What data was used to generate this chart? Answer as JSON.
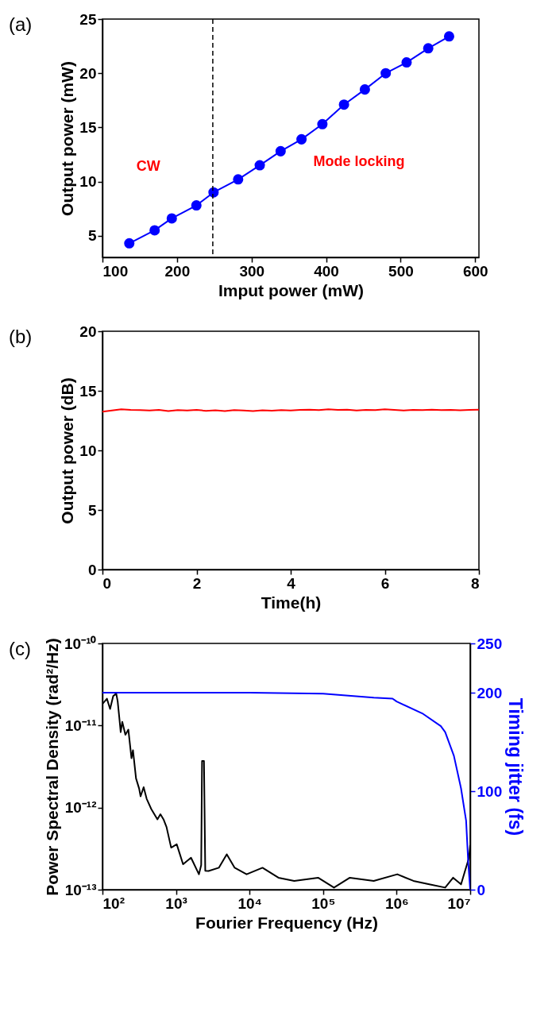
{
  "chart_data": [
    {
      "type": "line",
      "xlabel": "Imput power (mW)",
      "ylabel": "Output power (mW)",
      "annotations": [
        "(a)",
        "CW",
        "Mode locking"
      ],
      "x": [
        136,
        170,
        193,
        226,
        249,
        282,
        311,
        339,
        367,
        395,
        424,
        452,
        480,
        508,
        537,
        565
      ],
      "series": [
        {
          "color": "#0000ff",
          "values": [
            4.3,
            5.5,
            6.6,
            7.8,
            9.0,
            10.2,
            11.5,
            12.8,
            13.9,
            15.3,
            17.1,
            18.5,
            20.0,
            21.0,
            22.3,
            23.4
          ]
        }
      ],
      "marker": "circle",
      "xlim": [
        100,
        605
      ],
      "ylim": [
        3,
        25
      ],
      "xticks": [
        100,
        200,
        300,
        400,
        500,
        600
      ],
      "yticks": [
        5,
        10,
        15,
        20,
        25
      ],
      "grid": false,
      "ref_lines": [
        {
          "axis": "x",
          "value": 248,
          "color": "#000000",
          "line_style": "dashed"
        }
      ]
    },
    {
      "type": "line",
      "xlabel": "Time(h)",
      "ylabel": "Output power (dB)",
      "annotations": [
        "(b)"
      ],
      "x": [
        0,
        0.2,
        0.4,
        0.6,
        0.8,
        1,
        1.2,
        1.4,
        1.6,
        1.8,
        2,
        2.2,
        2.4,
        2.6,
        2.8,
        3,
        3.2,
        3.4,
        3.6,
        3.8,
        4,
        4.2,
        4.4,
        4.6,
        4.8,
        5,
        5.2,
        5.4,
        5.6,
        5.8,
        6,
        6.2,
        6.4,
        6.6,
        6.8,
        7,
        7.2,
        7.4,
        7.6,
        7.8,
        8
      ],
      "series": [
        {
          "color": "#ff0000",
          "values": [
            13.25,
            13.35,
            13.45,
            13.4,
            13.38,
            13.35,
            13.4,
            13.3,
            13.38,
            13.35,
            13.4,
            13.32,
            13.36,
            13.3,
            13.38,
            13.35,
            13.3,
            13.36,
            13.33,
            13.38,
            13.35,
            13.4,
            13.42,
            13.38,
            13.45,
            13.4,
            13.42,
            13.35,
            13.4,
            13.38,
            13.45,
            13.4,
            13.35,
            13.4,
            13.38,
            13.42,
            13.38,
            13.4,
            13.36,
            13.4,
            13.42
          ]
        }
      ],
      "marker": "none",
      "xlim": [
        0,
        8
      ],
      "ylim": [
        0,
        20
      ],
      "xticks": [
        0,
        2,
        4,
        6,
        8
      ],
      "yticks": [
        0,
        5,
        10,
        15,
        20
      ],
      "grid": false
    },
    {
      "type": "line",
      "xlabel": "Fourier Frequency (Hz)",
      "ylabel": "Power Spectral Density (rad²/Hz)",
      "y2label": "Timing jitter (fs)",
      "annotations": [
        "(c)"
      ],
      "log": "xy",
      "series": [
        {
          "color": "#000000",
          "x": [
            100,
            115,
            127,
            140,
            154,
            161,
            169,
            177,
            186,
            205,
            225,
            248,
            260,
            286,
            315,
            330,
            363,
            399,
            461,
            559,
            614,
            676,
            743,
            859,
            1023,
            1248,
            1600,
            2050,
            2200,
            2260,
            2400,
            2500,
            2770,
            3820,
            4900,
            6280,
            9120,
            15000,
            24700,
            40500,
            85500,
            140600,
            231000,
            488000,
            1020000,
            1690000,
            2780000,
            4570000,
            5860000,
            7510000,
            8500000,
            9640000,
            10000000
          ],
          "values": [
            1.83e-11,
            2.12e-11,
            1.59e-11,
            2.28e-11,
            2.45e-11,
            1.97e-11,
            1.28e-11,
            8.3e-12,
            1.11e-11,
            7.7e-12,
            8.9e-12,
            4e-12,
            5e-12,
            2.27e-12,
            1.71e-12,
            1.37e-12,
            1.77e-12,
            1.28e-12,
            9.6e-13,
            7.2e-13,
            8.3e-13,
            7.2e-13,
            5.8e-13,
            3.25e-13,
            3.57e-13,
            2.04e-13,
            2.45e-13,
            1.54e-13,
            2e-13,
            3.7e-12,
            3.7e-12,
            1.7e-13,
            1.69e-13,
            1.85e-13,
            2.7e-13,
            1.85e-13,
            1.54e-13,
            1.85e-13,
            1.4e-13,
            1.28e-13,
            1.4e-13,
            1.06e-13,
            1.4e-13,
            1.28e-13,
            1.54e-13,
            1.28e-13,
            1.16e-13,
            1.06e-13,
            1.4e-13,
            1.16e-13,
            1.69e-13,
            2.45e-13,
            3.5e-13
          ]
        },
        {
          "color": "#0000ff",
          "axis": "y2",
          "x": [
            100,
            10000,
            100000,
            488000,
            880000,
            1000000,
            2230000,
            3990000,
            4570000,
            6000000,
            7500000,
            8800000,
            9400000,
            10000000
          ],
          "values": [
            200,
            200,
            199,
            195,
            194,
            191,
            179,
            166,
            160,
            136,
            103,
            70,
            28,
            0
          ]
        }
      ],
      "marker": "none",
      "xlim": [
        100,
        10000000
      ],
      "ylim": [
        1e-13,
        1e-10
      ],
      "y2lim": [
        0,
        250
      ],
      "xticks": [
        {
          "value": 100,
          "label": "10²"
        },
        {
          "value": 1000,
          "label": "10³"
        },
        {
          "value": 10000,
          "label": "10⁴"
        },
        {
          "value": 100000,
          "label": "10⁵"
        },
        {
          "value": 1000000,
          "label": "10⁶"
        },
        {
          "value": 10000000,
          "label": "10⁷"
        }
      ],
      "yticks": [
        {
          "value": 1e-13,
          "label": "10⁻¹³"
        },
        {
          "value": 1e-12,
          "label": "10⁻¹²"
        },
        {
          "value": 1e-11,
          "label": "10⁻¹¹"
        },
        {
          "value": 1e-10,
          "label": "10⁻¹⁰"
        }
      ],
      "y2ticks": [
        0,
        100,
        200,
        250
      ],
      "grid": false
    }
  ]
}
